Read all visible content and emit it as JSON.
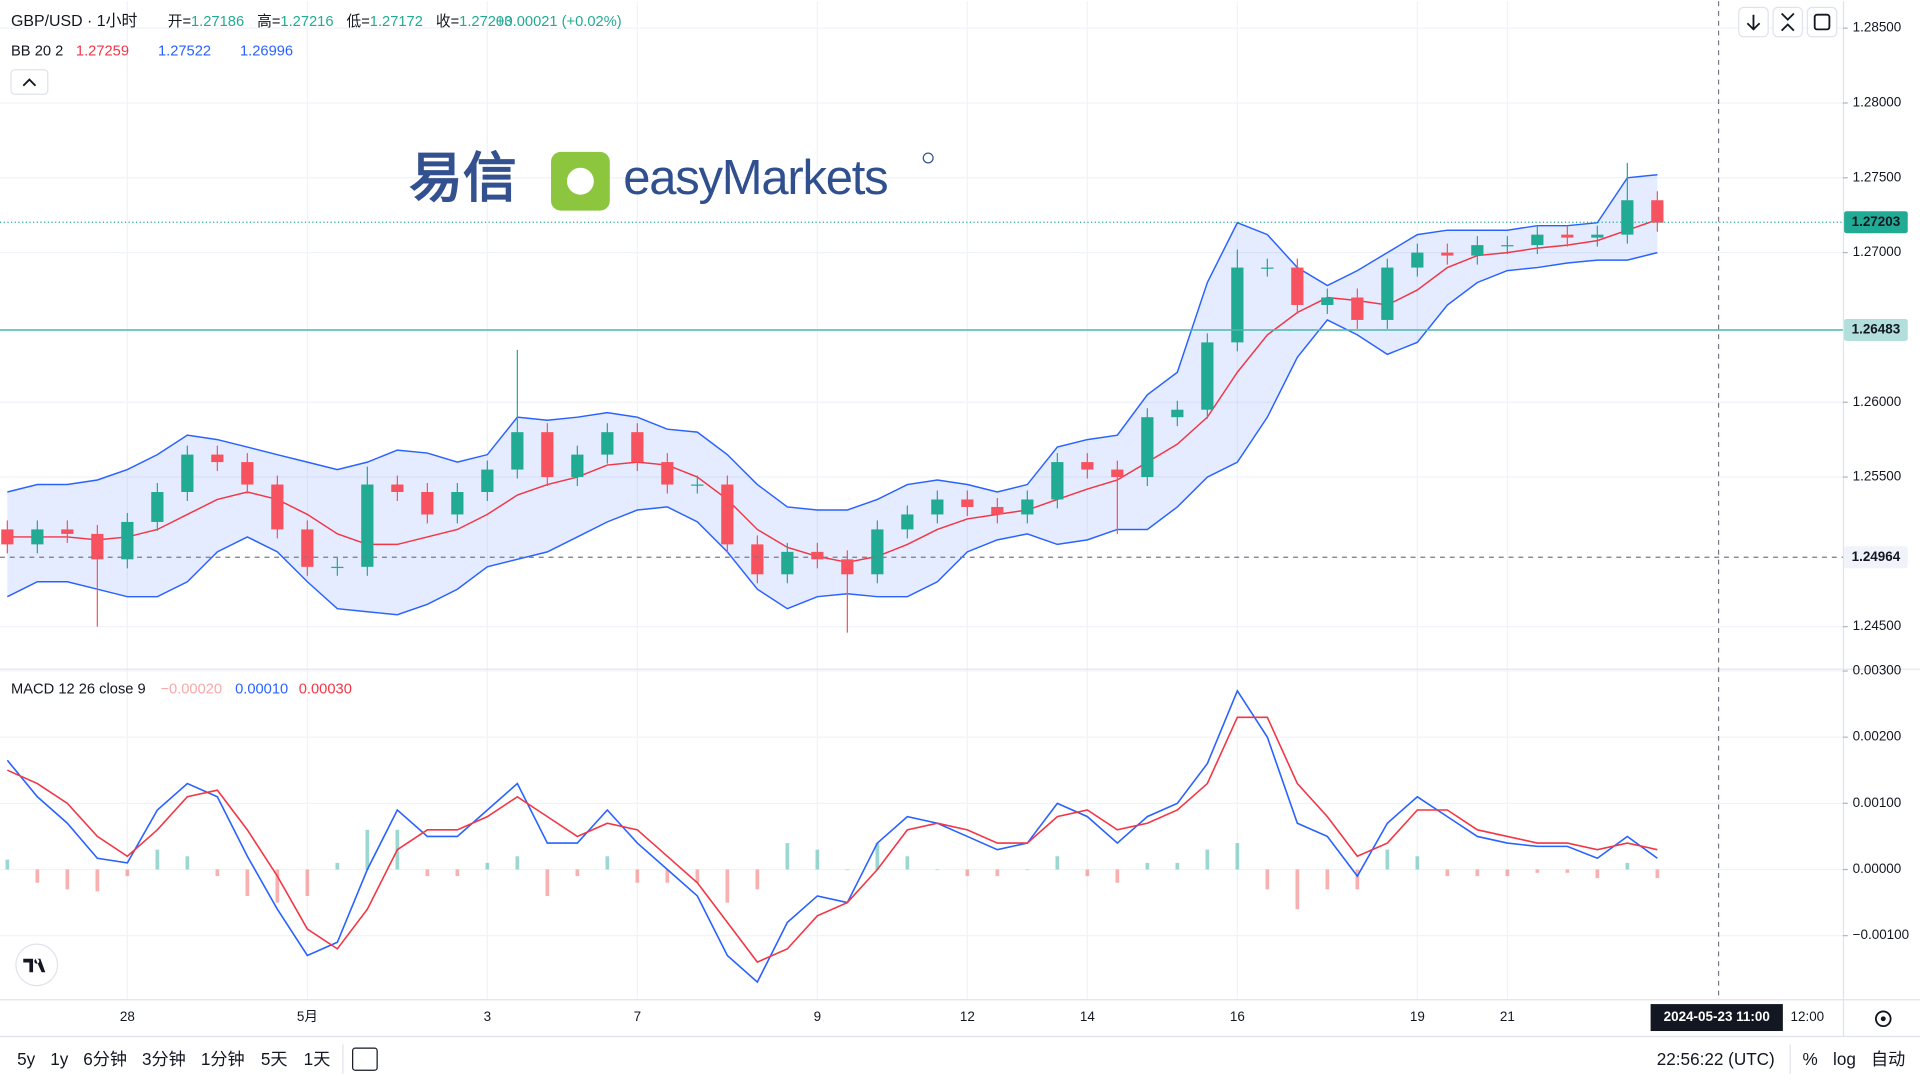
{
  "chart_data": [
    {
      "type": "candlestick",
      "title": "GBP/USD · 1小时",
      "ohlc_legend": [
        {
          "label": "开=",
          "value": "1.27186"
        },
        {
          "label": "高=",
          "value": "1.27216"
        },
        {
          "label": "低=",
          "value": "1.27172"
        },
        {
          "label": "收=",
          "value": "1.27203"
        }
      ],
      "change": "+0.00021 (+0.02%)",
      "indicator": "BB 20 2",
      "indicator_values": [
        "1.27259",
        "1.27522",
        "1.26996"
      ],
      "categories": [
        null,
        null,
        null,
        null,
        "28",
        null,
        null,
        null,
        null,
        null,
        "5月",
        null,
        null,
        null,
        null,
        null,
        "3",
        null,
        null,
        null,
        null,
        "7",
        null,
        null,
        null,
        null,
        null,
        "9",
        null,
        null,
        null,
        null,
        "12",
        null,
        null,
        null,
        "14",
        null,
        null,
        null,
        null,
        "16",
        null,
        null,
        null,
        null,
        null,
        "19",
        null,
        null,
        "21",
        null,
        null,
        null,
        null,
        null
      ],
      "future_tick": "12:00",
      "crosshair_time": "2024-05-23  11:00",
      "open": [
        1.2515,
        1.2505,
        1.2515,
        1.2512,
        1.2495,
        1.252,
        1.254,
        1.2565,
        1.256,
        1.2545,
        1.2515,
        1.249,
        1.249,
        1.2545,
        1.254,
        1.2525,
        1.254,
        1.2555,
        1.258,
        1.255,
        1.2565,
        1.258,
        1.256,
        1.2545,
        1.2545,
        1.2505,
        1.2485,
        1.25,
        1.2495,
        1.2485,
        1.2515,
        1.2525,
        1.2535,
        1.253,
        1.2525,
        1.2535,
        1.256,
        1.2555,
        1.255,
        1.259,
        1.2595,
        1.264,
        1.269,
        1.269,
        1.2665,
        1.267,
        1.2655,
        1.269,
        1.27,
        1.2698,
        1.2705,
        1.2705,
        1.2712,
        1.271,
        1.2712,
        1.2735
      ],
      "high": [
        1.2521,
        1.2521,
        1.2521,
        1.2518,
        1.2526,
        1.2546,
        1.2571,
        1.2571,
        1.2566,
        1.2551,
        1.2521,
        1.2496,
        1.2557,
        1.2551,
        1.2546,
        1.2546,
        1.2561,
        1.2635,
        1.2586,
        1.2571,
        1.2586,
        1.2586,
        1.2566,
        1.2551,
        1.2551,
        1.2511,
        1.2506,
        1.2506,
        1.2501,
        1.2521,
        1.2531,
        1.2541,
        1.2541,
        1.2536,
        1.2541,
        1.2566,
        1.2566,
        1.2561,
        1.2596,
        1.2601,
        1.2646,
        1.2702,
        1.2696,
        1.2696,
        1.2676,
        1.2676,
        1.2696,
        1.2706,
        1.2706,
        1.2711,
        1.2711,
        1.2718,
        1.2718,
        1.2718,
        1.276,
        1.2741
      ],
      "low": [
        1.2499,
        1.2499,
        1.2506,
        1.245,
        1.2489,
        1.2514,
        1.2534,
        1.2554,
        1.2539,
        1.2509,
        1.2484,
        1.2484,
        1.2484,
        1.2534,
        1.2519,
        1.2519,
        1.2534,
        1.2549,
        1.2544,
        1.2544,
        1.2559,
        1.2554,
        1.2539,
        1.2539,
        1.2499,
        1.2479,
        1.2479,
        1.2489,
        1.2446,
        1.2479,
        1.2509,
        1.2519,
        1.2524,
        1.2519,
        1.2519,
        1.2529,
        1.2549,
        1.2512,
        1.2544,
        1.2584,
        1.2589,
        1.2634,
        1.2684,
        1.2659,
        1.2659,
        1.2649,
        1.2649,
        1.2684,
        1.2692,
        1.2692,
        1.2699,
        1.2699,
        1.2704,
        1.2704,
        1.2706,
        1.2714
      ],
      "close": [
        1.2505,
        1.2515,
        1.2512,
        1.2495,
        1.252,
        1.254,
        1.2565,
        1.256,
        1.2545,
        1.2515,
        1.249,
        1.249,
        1.2545,
        1.254,
        1.2525,
        1.254,
        1.2555,
        1.258,
        1.255,
        1.2565,
        1.258,
        1.256,
        1.2545,
        1.2545,
        1.2505,
        1.2485,
        1.25,
        1.2495,
        1.2485,
        1.2515,
        1.2525,
        1.2535,
        1.253,
        1.2525,
        1.2535,
        1.256,
        1.2555,
        1.255,
        1.259,
        1.2595,
        1.264,
        1.269,
        1.269,
        1.2665,
        1.267,
        1.2655,
        1.269,
        1.27,
        1.2698,
        1.2705,
        1.2705,
        1.2712,
        1.271,
        1.2712,
        1.2735,
        1.272
      ],
      "up_color": "#22ab94",
      "down_color": "#f7525f",
      "band_fill": "#2962ff",
      "series": [
        {
          "color": "#f23645",
          "values": [
            1.251,
            1.251,
            1.251,
            1.2508,
            1.251,
            1.2515,
            1.2525,
            1.2535,
            1.254,
            1.2535,
            1.2525,
            1.2512,
            1.2505,
            1.2505,
            1.251,
            1.2515,
            1.2525,
            1.2538,
            1.2545,
            1.255,
            1.2558,
            1.256,
            1.2558,
            1.255,
            1.2535,
            1.2515,
            1.2503,
            1.2497,
            1.2493,
            1.2497,
            1.2505,
            1.2515,
            1.2522,
            1.2525,
            1.2528,
            1.2535,
            1.2542,
            1.2548,
            1.256,
            1.2572,
            1.259,
            1.262,
            1.2645,
            1.266,
            1.267,
            1.2668,
            1.2665,
            1.2675,
            1.269,
            1.2698,
            1.27,
            1.2703,
            1.2705,
            1.2708,
            1.2715,
            1.2722
          ]
        },
        {
          "color": "#2962ff",
          "values": [
            1.254,
            1.2545,
            1.2545,
            1.2548,
            1.2555,
            1.2565,
            1.2578,
            1.2575,
            1.257,
            1.2565,
            1.256,
            1.2555,
            1.256,
            1.2568,
            1.2566,
            1.256,
            1.2565,
            1.259,
            1.2588,
            1.259,
            1.2593,
            1.259,
            1.2582,
            1.258,
            1.2565,
            1.2545,
            1.253,
            1.2528,
            1.2528,
            1.2535,
            1.2545,
            1.2548,
            1.2545,
            1.254,
            1.2545,
            1.257,
            1.2575,
            1.2578,
            1.2605,
            1.262,
            1.268,
            1.272,
            1.2712,
            1.269,
            1.2678,
            1.2688,
            1.27,
            1.2712,
            1.2715,
            1.2715,
            1.2715,
            1.2718,
            1.2718,
            1.272,
            1.275,
            1.2752
          ]
        },
        {
          "color": "#2962ff",
          "values": [
            1.247,
            1.248,
            1.248,
            1.2475,
            1.247,
            1.247,
            1.248,
            1.25,
            1.251,
            1.25,
            1.248,
            1.2462,
            1.246,
            1.2458,
            1.2465,
            1.2475,
            1.249,
            1.2495,
            1.25,
            1.251,
            1.252,
            1.2528,
            1.253,
            1.252,
            1.25,
            1.2475,
            1.2462,
            1.247,
            1.2472,
            1.247,
            1.247,
            1.248,
            1.25,
            1.2508,
            1.2512,
            1.2505,
            1.2508,
            1.2515,
            1.2515,
            1.253,
            1.255,
            1.256,
            1.259,
            1.263,
            1.2655,
            1.2645,
            1.2632,
            1.264,
            1.2665,
            1.268,
            1.2688,
            1.269,
            1.2693,
            1.2695,
            1.2695,
            1.27
          ]
        }
      ],
      "ylim": [
        1.2422,
        1.2868
      ],
      "yticks": [
        {
          "value": 1.285,
          "label": "1.28500"
        },
        {
          "value": 1.28,
          "label": "1.28000"
        },
        {
          "value": 1.275,
          "label": "1.27500"
        },
        {
          "value": 1.27,
          "label": "1.27000"
        },
        {
          "value": 1.26,
          "label": "1.26000"
        },
        {
          "value": 1.255,
          "label": "1.25500"
        },
        {
          "value": 1.245,
          "label": "1.24500"
        }
      ],
      "last_price": 1.27203,
      "level": 1.26483,
      "crosshair_price": 1.24964,
      "grid": true
    },
    {
      "type": "macd",
      "title": "MACD 12 26 close 9",
      "indicator_values": [
        "−0.00020",
        "0.00010",
        "0.00030"
      ],
      "series": [
        {
          "color": "#2962ff",
          "values": [
            0.00165,
            0.0011,
            0.0007,
            0.00017,
            0.0001,
            0.0009,
            0.0013,
            0.0011,
            0.0002,
            -0.0006,
            -0.0013,
            -0.0011,
            0.0,
            0.0009,
            0.0005,
            0.0005,
            0.0009,
            0.0013,
            0.0004,
            0.0004,
            0.0009,
            0.0004,
            0.0,
            -0.0004,
            -0.0013,
            -0.0017,
            -0.0008,
            -0.0004,
            -0.0005,
            0.0004,
            0.0008,
            0.0007,
            0.0005,
            0.0003,
            0.0004,
            0.001,
            0.0008,
            0.0004,
            0.0008,
            0.001,
            0.0016,
            0.0027,
            0.002,
            0.0007,
            0.0005,
            -0.0001,
            0.0007,
            0.0011,
            0.0008,
            0.0005,
            0.0004,
            0.00035,
            0.00035,
            0.00017,
            0.0005,
            0.00017
          ]
        },
        {
          "color": "#f23645",
          "values": [
            0.0015,
            0.0013,
            0.001,
            0.0005,
            0.0002,
            0.0006,
            0.0011,
            0.0012,
            0.0006,
            -0.0001,
            -0.0009,
            -0.0012,
            -0.0006,
            0.0003,
            0.0006,
            0.0006,
            0.0008,
            0.0011,
            0.0008,
            0.0005,
            0.0007,
            0.0006,
            0.0002,
            -0.0002,
            -0.0008,
            -0.0014,
            -0.0012,
            -0.0007,
            -0.0005,
            0.0,
            0.0006,
            0.0007,
            0.0006,
            0.0004,
            0.0004,
            0.0008,
            0.0009,
            0.0006,
            0.0007,
            0.0009,
            0.0013,
            0.0023,
            0.0023,
            0.0013,
            0.0008,
            0.0002,
            0.0004,
            0.0009,
            0.0009,
            0.0006,
            0.0005,
            0.0004,
            0.0004,
            0.0003,
            0.0004,
            0.0003
          ]
        }
      ],
      "histogram": [
        0.00015,
        -0.0002,
        -0.0003,
        -0.00033,
        -0.0001,
        0.0003,
        0.0002,
        -0.0001,
        -0.0004,
        -0.0005,
        -0.0004,
        0.0001,
        0.0006,
        0.0006,
        -0.0001,
        -0.0001,
        0.0001,
        0.0002,
        -0.0004,
        -0.0001,
        0.0002,
        -0.0002,
        -0.0002,
        -0.0002,
        -0.0005,
        -0.0003,
        0.0004,
        0.0003,
        0.0,
        0.0004,
        0.0002,
        0.0,
        -0.0001,
        -0.0001,
        0.0,
        0.0002,
        -0.0001,
        -0.0002,
        0.0001,
        0.0001,
        0.0003,
        0.0004,
        -0.0003,
        -0.0006,
        -0.0003,
        -0.0003,
        0.0003,
        0.0002,
        -0.0001,
        -0.0001,
        -0.0001,
        -5e-05,
        -5e-05,
        -0.00013,
        0.0001,
        -0.00013
      ],
      "hist_colors": {
        "up": "#26a69a",
        "down": "#ef5350"
      },
      "ylim": [
        -0.00196,
        0.003
      ],
      "yticks": [
        {
          "value": 0.003,
          "label": "0.00300"
        },
        {
          "value": 0.002,
          "label": "0.00200"
        },
        {
          "value": 0.001,
          "label": "0.00100"
        },
        {
          "value": 0,
          "label": "0.00000"
        },
        {
          "value": -0.001,
          "label": "−0.00100"
        }
      ],
      "grid": true
    }
  ],
  "logo": {
    "cn": "易信",
    "en": "easyMarkets"
  },
  "toolbar": {
    "ranges": [
      "5y",
      "1y",
      "6分钟",
      "3分钟",
      "1分钟",
      "5天",
      "1天"
    ],
    "time": "22:56:22 (UTC)",
    "options": [
      "%",
      "log",
      "自动"
    ]
  }
}
